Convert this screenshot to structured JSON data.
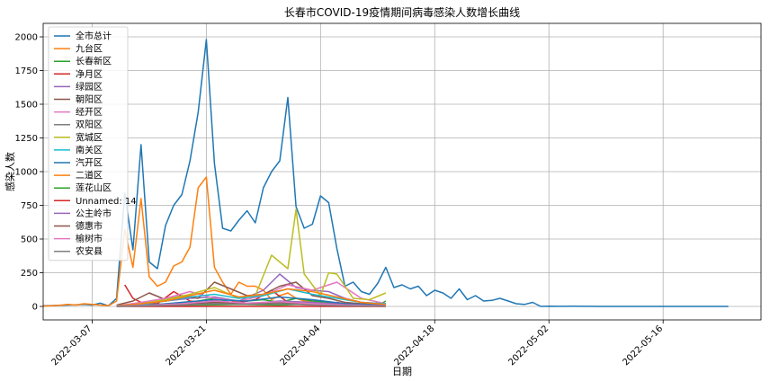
{
  "chart_data": {
    "type": "line",
    "title": "长春市COVID-19疫情期间病毒感染人数增长曲线",
    "xlabel": "日期",
    "ylabel": "感染人数",
    "xlim": [
      "2022-03-01",
      "2022-05-28"
    ],
    "ylim": [
      -100,
      2100
    ],
    "yticks": [
      0,
      250,
      500,
      750,
      1000,
      1250,
      1500,
      1750,
      2000
    ],
    "xticks": [
      "2022-03-07",
      "2022-03-21",
      "2022-04-04",
      "2022-04-18",
      "2022-05-02",
      "2022-05-16"
    ],
    "grid": true,
    "legend_position": "top-left",
    "series": [
      {
        "name": "全市总计",
        "color": "#1f77b4",
        "x": [
          "2022-03-01",
          "2022-03-02",
          "2022-03-03",
          "2022-03-04",
          "2022-03-05",
          "2022-03-06",
          "2022-03-07",
          "2022-03-08",
          "2022-03-09",
          "2022-03-10",
          "2022-03-11",
          "2022-03-12",
          "2022-03-13",
          "2022-03-14",
          "2022-03-15",
          "2022-03-16",
          "2022-03-17",
          "2022-03-18",
          "2022-03-19",
          "2022-03-20",
          "2022-03-21",
          "2022-03-22",
          "2022-03-23",
          "2022-03-24",
          "2022-03-25",
          "2022-03-26",
          "2022-03-27",
          "2022-03-28",
          "2022-03-29",
          "2022-03-30",
          "2022-03-31",
          "2022-04-01",
          "2022-04-02",
          "2022-04-03",
          "2022-04-04",
          "2022-04-05",
          "2022-04-06",
          "2022-04-07",
          "2022-04-08",
          "2022-04-09",
          "2022-04-10",
          "2022-04-11",
          "2022-04-12",
          "2022-04-13",
          "2022-04-14",
          "2022-04-15",
          "2022-04-16",
          "2022-04-17",
          "2022-04-18",
          "2022-04-19",
          "2022-04-20",
          "2022-04-21",
          "2022-04-22",
          "2022-04-23",
          "2022-04-24",
          "2022-04-25",
          "2022-04-26",
          "2022-04-27",
          "2022-04-28",
          "2022-04-29",
          "2022-04-30",
          "2022-05-01",
          "2022-05-02",
          "2022-05-03",
          "2022-05-04",
          "2022-05-05",
          "2022-05-06",
          "2022-05-07",
          "2022-05-08",
          "2022-05-09",
          "2022-05-10",
          "2022-05-11",
          "2022-05-12",
          "2022-05-13",
          "2022-05-14",
          "2022-05-15",
          "2022-05-16",
          "2022-05-17",
          "2022-05-18",
          "2022-05-19",
          "2022-05-20",
          "2022-05-21",
          "2022-05-22",
          "2022-05-23",
          "2022-05-24"
        ],
        "y": [
          5,
          6,
          8,
          10,
          12,
          15,
          10,
          25,
          5,
          60,
          840,
          420,
          1200,
          330,
          280,
          600,
          750,
          830,
          1080,
          1440,
          1980,
          1060,
          580,
          560,
          640,
          710,
          620,
          880,
          1000,
          1080,
          1550,
          740,
          580,
          610,
          820,
          770,
          430,
          150,
          180,
          110,
          90,
          170,
          290,
          140,
          160,
          130,
          150,
          80,
          120,
          100,
          60,
          130,
          50,
          80,
          40,
          45,
          60,
          40,
          20,
          15,
          30,
          0,
          2,
          1,
          1,
          2,
          1,
          1,
          0,
          0,
          0,
          0,
          0,
          0,
          0,
          0,
          0,
          0,
          0,
          0,
          0,
          0,
          0,
          0,
          0
        ]
      },
      {
        "name": "九台区",
        "color": "#ff7f0e",
        "x": [
          "2022-03-01",
          "2022-03-02",
          "2022-03-03",
          "2022-03-04",
          "2022-03-05",
          "2022-03-06",
          "2022-03-07",
          "2022-03-08",
          "2022-03-09",
          "2022-03-10",
          "2022-03-11",
          "2022-03-12",
          "2022-03-13",
          "2022-03-14",
          "2022-03-15",
          "2022-03-16",
          "2022-03-17",
          "2022-03-18",
          "2022-03-19",
          "2022-03-20",
          "2022-03-21",
          "2022-03-22",
          "2022-03-23",
          "2022-03-24",
          "2022-03-25",
          "2022-03-26",
          "2022-03-27",
          "2022-03-28",
          "2022-03-29",
          "2022-03-30",
          "2022-03-31",
          "2022-04-01",
          "2022-04-02",
          "2022-04-03",
          "2022-04-04",
          "2022-04-05",
          "2022-04-06",
          "2022-04-07",
          "2022-04-08",
          "2022-04-09",
          "2022-04-10",
          "2022-04-11",
          "2022-04-12"
        ],
        "y": [
          3,
          5,
          8,
          15,
          10,
          20,
          15,
          10,
          5,
          40,
          570,
          290,
          800,
          220,
          150,
          180,
          300,
          330,
          440,
          880,
          960,
          290,
          180,
          90,
          180,
          150,
          150,
          120,
          50,
          80,
          100,
          60,
          40,
          30,
          20,
          10,
          5,
          5,
          5,
          3,
          2,
          2,
          1
        ]
      },
      {
        "name": "长春新区",
        "color": "#2ca02c",
        "x": [
          "2022-03-10",
          "2022-03-12",
          "2022-03-14",
          "2022-03-16",
          "2022-03-18",
          "2022-03-20",
          "2022-03-22",
          "2022-03-24",
          "2022-03-26",
          "2022-03-28",
          "2022-03-30",
          "2022-04-01",
          "2022-04-03",
          "2022-04-05",
          "2022-04-07",
          "2022-04-09",
          "2022-04-11",
          "2022-04-12"
        ],
        "y": [
          5,
          10,
          20,
          15,
          30,
          40,
          60,
          30,
          40,
          50,
          30,
          60,
          40,
          30,
          20,
          10,
          5,
          40
        ]
      },
      {
        "name": "净月区",
        "color": "#d62728",
        "x": [
          "2022-03-11",
          "2022-03-12",
          "2022-03-13",
          "2022-03-15",
          "2022-03-17",
          "2022-03-19",
          "2022-03-21",
          "2022-03-23",
          "2022-03-25",
          "2022-03-27",
          "2022-03-29",
          "2022-03-31",
          "2022-04-02",
          "2022-04-04",
          "2022-04-06",
          "2022-04-08",
          "2022-04-10",
          "2022-04-12"
        ],
        "y": [
          160,
          60,
          30,
          20,
          110,
          40,
          30,
          60,
          30,
          50,
          120,
          30,
          20,
          10,
          30,
          10,
          5,
          5
        ]
      },
      {
        "name": "绿园区",
        "color": "#9467bd",
        "x": [
          "2022-03-10",
          "2022-03-13",
          "2022-03-16",
          "2022-03-19",
          "2022-03-22",
          "2022-03-25",
          "2022-03-28",
          "2022-03-30",
          "2022-04-01",
          "2022-04-03",
          "2022-04-05",
          "2022-04-07",
          "2022-04-09",
          "2022-04-12"
        ],
        "y": [
          5,
          20,
          40,
          60,
          70,
          40,
          120,
          240,
          140,
          120,
          110,
          60,
          30,
          20
        ]
      },
      {
        "name": "朝阳区",
        "color": "#8c564b",
        "x": [
          "2022-03-10",
          "2022-03-12",
          "2022-03-14",
          "2022-03-16",
          "2022-03-18",
          "2022-03-20",
          "2022-03-22",
          "2022-03-24",
          "2022-03-26",
          "2022-03-28",
          "2022-03-30",
          "2022-04-01",
          "2022-04-03",
          "2022-04-05",
          "2022-04-07",
          "2022-04-09",
          "2022-04-12"
        ],
        "y": [
          10,
          40,
          100,
          50,
          80,
          60,
          180,
          130,
          80,
          90,
          150,
          180,
          80,
          60,
          30,
          20,
          10
        ]
      },
      {
        "name": "经开区",
        "color": "#e377c2",
        "x": [
          "2022-03-10",
          "2022-03-13",
          "2022-03-16",
          "2022-03-19",
          "2022-03-22",
          "2022-03-25",
          "2022-03-28",
          "2022-03-31",
          "2022-04-03",
          "2022-04-06",
          "2022-04-09",
          "2022-04-12"
        ],
        "y": [
          5,
          30,
          60,
          110,
          60,
          40,
          80,
          160,
          120,
          180,
          60,
          20
        ]
      },
      {
        "name": "双阳区",
        "color": "#7f7f7f",
        "x": [
          "2022-03-10",
          "2022-03-14",
          "2022-03-18",
          "2022-03-22",
          "2022-03-26",
          "2022-03-30",
          "2022-04-03",
          "2022-04-07",
          "2022-04-12"
        ],
        "y": [
          2,
          5,
          10,
          20,
          15,
          30,
          20,
          10,
          5
        ]
      },
      {
        "name": "宽城区",
        "color": "#bcbd22",
        "x": [
          "2022-03-10",
          "2022-03-13",
          "2022-03-16",
          "2022-03-19",
          "2022-03-22",
          "2022-03-25",
          "2022-03-27",
          "2022-03-29",
          "2022-03-31",
          "2022-04-01",
          "2022-04-02",
          "2022-04-04",
          "2022-04-05",
          "2022-04-06",
          "2022-04-08",
          "2022-04-10",
          "2022-04-12"
        ],
        "y": [
          5,
          20,
          50,
          90,
          140,
          60,
          80,
          380,
          280,
          720,
          240,
          80,
          250,
          240,
          60,
          50,
          100
        ]
      },
      {
        "name": "南关区",
        "color": "#17becf",
        "x": [
          "2022-03-10",
          "2022-03-13",
          "2022-03-16",
          "2022-03-19",
          "2022-03-22",
          "2022-03-25",
          "2022-03-28",
          "2022-03-31",
          "2022-04-03",
          "2022-04-06",
          "2022-04-09",
          "2022-04-12"
        ],
        "y": [
          5,
          15,
          40,
          70,
          90,
          60,
          80,
          130,
          90,
          60,
          30,
          20
        ]
      },
      {
        "name": "汽开区",
        "color": "#1f77b4",
        "x": [
          "2022-03-10",
          "2022-03-14",
          "2022-03-18",
          "2022-03-22",
          "2022-03-26",
          "2022-03-30",
          "2022-04-03",
          "2022-04-07",
          "2022-04-12"
        ],
        "y": [
          2,
          10,
          30,
          50,
          40,
          70,
          50,
          20,
          10
        ]
      },
      {
        "name": "二道区",
        "color": "#ff7f0e",
        "x": [
          "2022-03-10",
          "2022-03-13",
          "2022-03-16",
          "2022-03-19",
          "2022-03-22",
          "2022-03-25",
          "2022-03-28",
          "2022-03-31",
          "2022-04-03",
          "2022-04-06",
          "2022-04-09",
          "2022-04-12"
        ],
        "y": [
          5,
          20,
          40,
          80,
          120,
          70,
          90,
          130,
          110,
          70,
          30,
          15
        ]
      },
      {
        "name": "莲花山区",
        "color": "#2ca02c",
        "x": [
          "2022-03-10",
          "2022-03-15",
          "2022-03-20",
          "2022-03-25",
          "2022-03-30",
          "2022-04-04",
          "2022-04-08",
          "2022-04-12"
        ],
        "y": [
          1,
          5,
          10,
          15,
          10,
          20,
          5,
          3
        ]
      },
      {
        "name": "Unnamed: 14",
        "color": "#d62728",
        "x": [
          "2022-03-10",
          "2022-03-20",
          "2022-03-30",
          "2022-04-12"
        ],
        "y": [
          0,
          0,
          0,
          0
        ]
      },
      {
        "name": "公主岭市",
        "color": "#9467bd",
        "x": [
          "2022-03-10",
          "2022-03-14",
          "2022-03-18",
          "2022-03-22",
          "2022-03-26",
          "2022-03-30",
          "2022-04-03",
          "2022-04-07",
          "2022-04-12"
        ],
        "y": [
          3,
          10,
          20,
          30,
          20,
          40,
          30,
          15,
          5
        ]
      },
      {
        "name": "德惠市",
        "color": "#8c564b",
        "x": [
          "2022-03-10",
          "2022-03-14",
          "2022-03-18",
          "2022-03-22",
          "2022-03-26",
          "2022-03-30",
          "2022-04-03",
          "2022-04-07",
          "2022-04-12"
        ],
        "y": [
          2,
          5,
          15,
          30,
          20,
          25,
          15,
          10,
          5
        ]
      },
      {
        "name": "榆树市",
        "color": "#e377c2",
        "x": [
          "2022-03-10",
          "2022-03-14",
          "2022-03-18",
          "2022-03-22",
          "2022-03-26",
          "2022-03-30",
          "2022-04-03",
          "2022-04-07",
          "2022-04-12"
        ],
        "y": [
          2,
          8,
          20,
          40,
          25,
          35,
          20,
          10,
          5
        ]
      },
      {
        "name": "农安县",
        "color": "#7f7f7f",
        "x": [
          "2022-03-10",
          "2022-03-14",
          "2022-03-18",
          "2022-03-22",
          "2022-03-26",
          "2022-03-30",
          "2022-04-03",
          "2022-04-07",
          "2022-04-12"
        ],
        "y": [
          1,
          5,
          10,
          20,
          15,
          20,
          10,
          5,
          3
        ]
      }
    ]
  }
}
